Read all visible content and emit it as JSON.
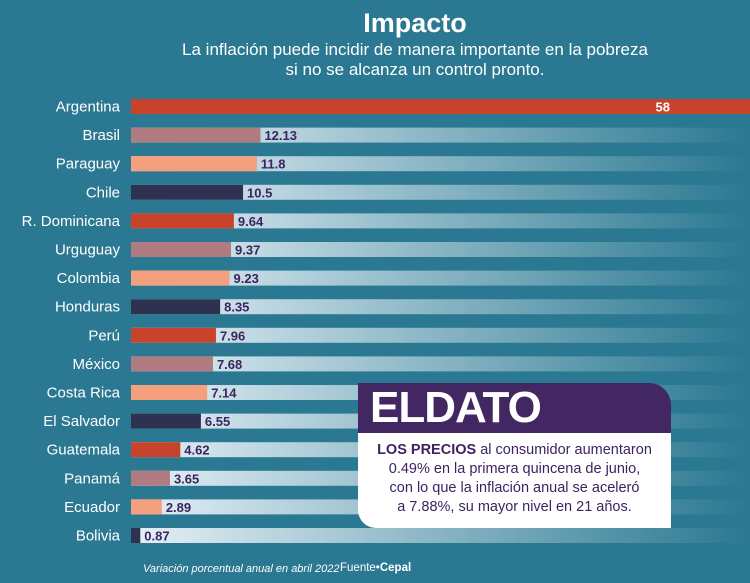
{
  "header": {
    "title": "Impacto",
    "subtitle_line1": "La inflación puede incidir de manera importante en la pobreza",
    "subtitle_line2": "si no se alcanza un control pronto."
  },
  "chart_data": {
    "type": "bar",
    "orientation": "horizontal",
    "title": "Impacto",
    "categories": [
      "Argentina",
      "Brasil",
      "Paraguay",
      "Chile",
      "R. Dominicana",
      "Urguguay",
      "Colombia",
      "Honduras",
      "Perú",
      "México",
      "Costa Rica",
      "El Salvador",
      "Guatemala",
      "Panamá",
      "Ecuador",
      "Bolivia"
    ],
    "values": [
      58,
      12.13,
      11.8,
      10.5,
      9.64,
      9.37,
      9.23,
      8.35,
      7.96,
      7.68,
      7.14,
      6.55,
      4.62,
      3.65,
      2.89,
      0.87
    ],
    "value_labels": [
      "58",
      "12.13",
      "11.8",
      "10.5",
      "9.64",
      "9.37",
      "9.23",
      "8.35",
      "7.96",
      "7.68",
      "7.14",
      "6.55",
      "4.62",
      "3.65",
      "2.89",
      "0.87"
    ],
    "xlim": [
      0,
      58
    ],
    "unit": "Variación porcentual anual en abril 2022",
    "bar_colors": [
      "#c8432b",
      "#b07c82",
      "#f4a07e",
      "#2f3150"
    ],
    "track_color_start": "#e6f1f6",
    "track_color_end": "#2a7891"
  },
  "callout": {
    "title": "ELDATO",
    "lead": "LOS PRECIOS",
    "text_line1": " al consumidor aumentaron",
    "text_line2": "0.49% en la primera quincena de junio,",
    "text_line3": "con lo que la inflación anual se aceleró",
    "text_line4": "a 7.88%, su mayor nivel en 21 años."
  },
  "footer": {
    "note": "Variación porcentual anual en abril 2022",
    "source_label": "Fuente•",
    "source_name": "Cepal"
  },
  "colors": {
    "background": "#2a7891",
    "callout_header": "#432763",
    "value_text": "#3d2461"
  }
}
